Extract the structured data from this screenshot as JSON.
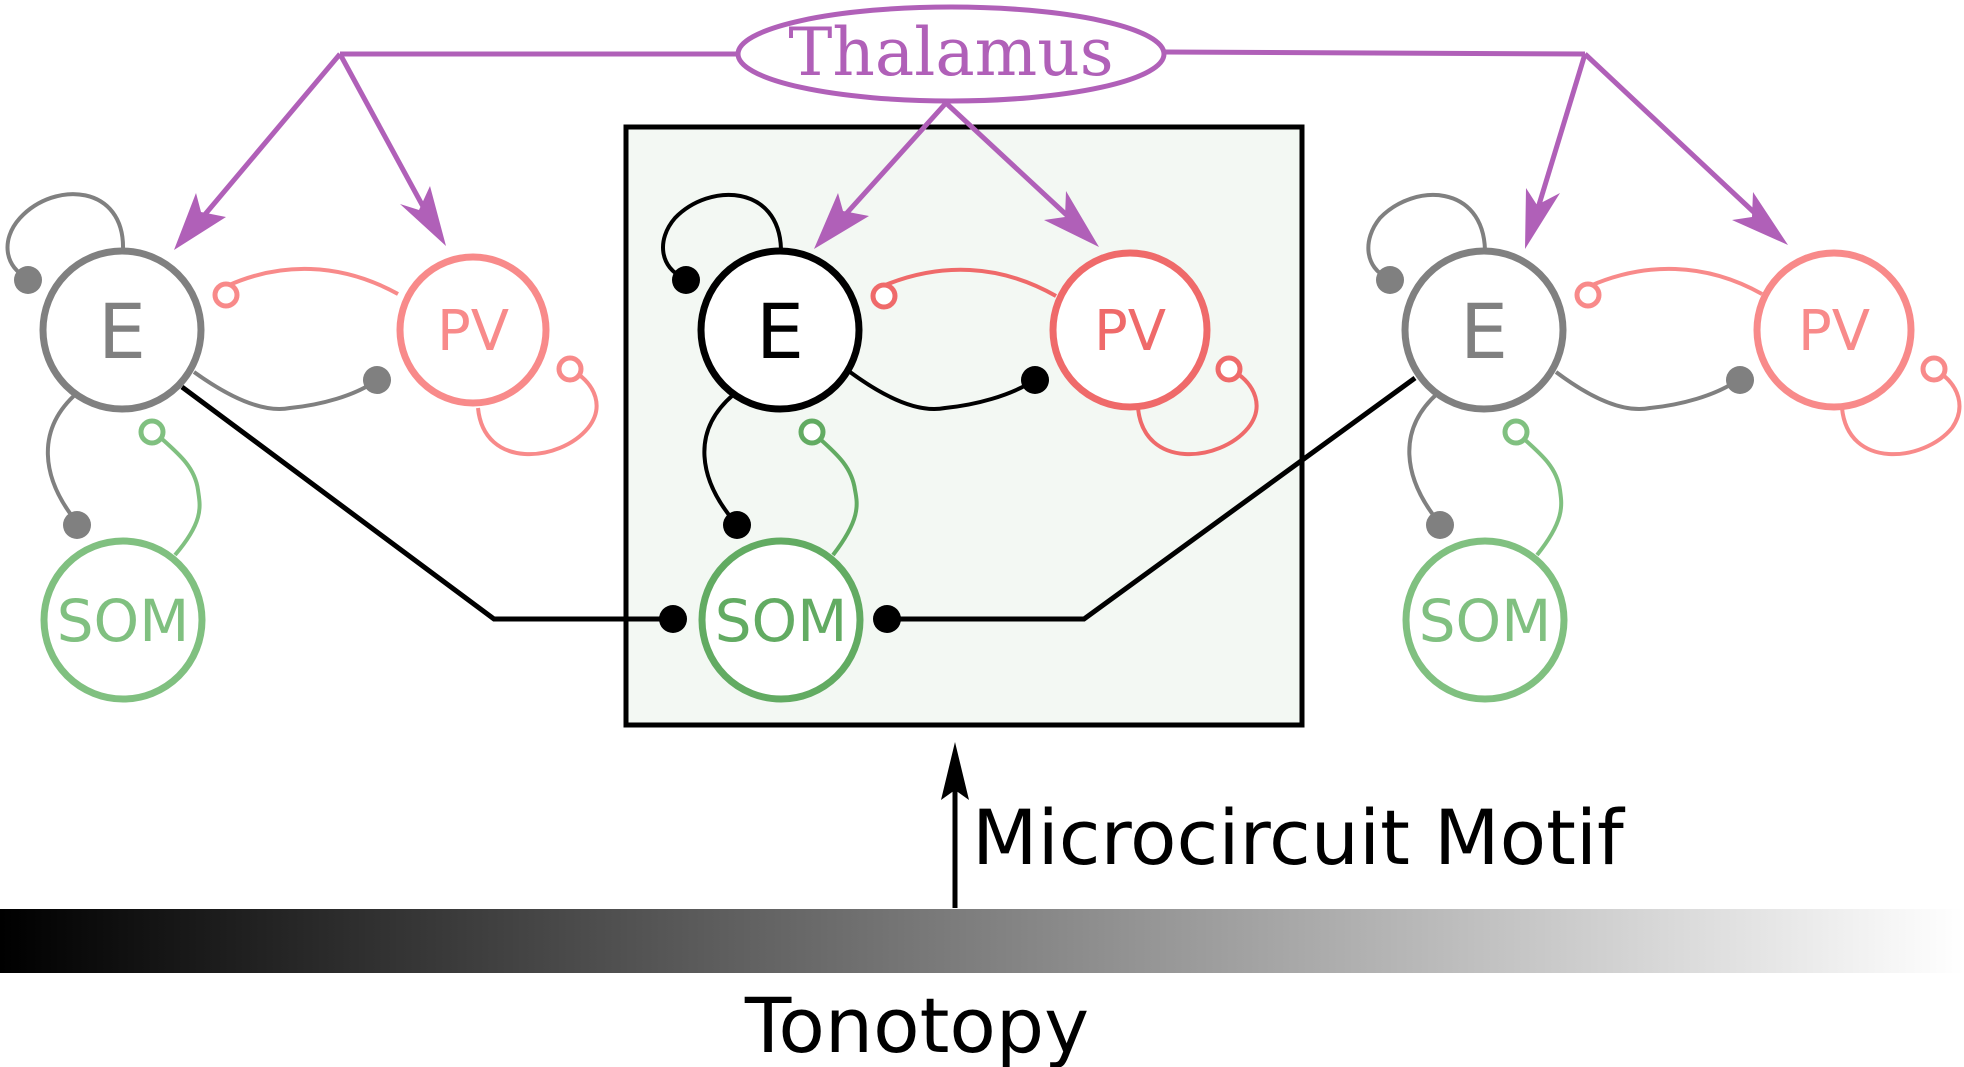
{
  "thalamus": {
    "label": "Thalamus"
  },
  "motif_label": "Microcircuit Motif",
  "axis_label": "Tonotopy",
  "cells": {
    "e": "E",
    "pv": "PV",
    "som": "SOM"
  },
  "colors": {
    "thalamus": "#b060b8",
    "e_center": "#000000",
    "pv_center": "#ef6a6a",
    "som_center": "#62ab62",
    "e_side": "#808080",
    "pv_side": "#f88a8a",
    "som_side": "#80c080",
    "box_fill": "#f3f8f3",
    "gradient_start": "#000000",
    "gradient_end": "#ffffff"
  }
}
